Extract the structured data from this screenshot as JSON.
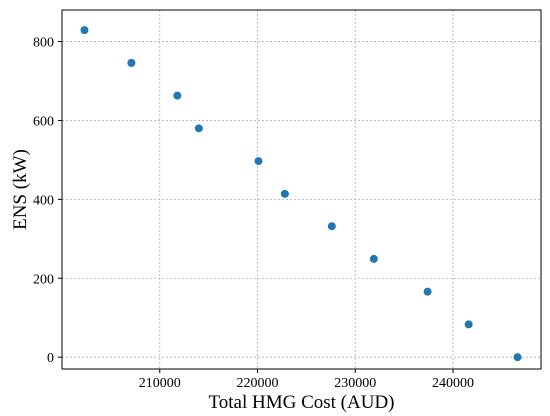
{
  "chart_data": {
    "type": "scatter",
    "title": "",
    "xlabel": "Total HMG Cost (AUD)",
    "ylabel": "ENS (kW)",
    "xlim": [
      200000,
      249000
    ],
    "ylim": [
      -30,
      880
    ],
    "xticks": [
      210000,
      220000,
      230000,
      240000
    ],
    "yticks": [
      0,
      200,
      400,
      600,
      800
    ],
    "grid": true,
    "marker_color": "#1f77b4",
    "series": [
      {
        "x": [
          202300,
          207100,
          211800,
          214000,
          220100,
          222800,
          227600,
          231900,
          237400,
          241600,
          246600
        ],
        "y": [
          829,
          746,
          663,
          580,
          497,
          414,
          332,
          249,
          166,
          83,
          0
        ]
      }
    ]
  }
}
